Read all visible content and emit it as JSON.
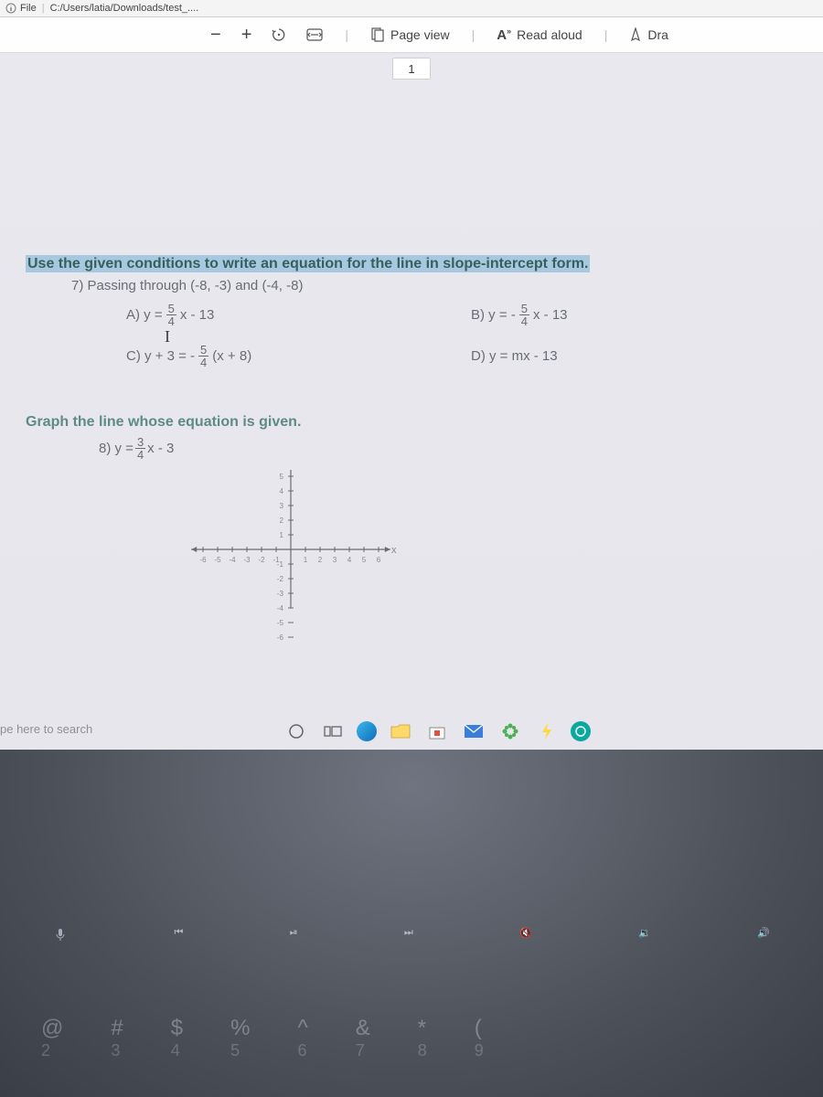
{
  "topbar": {
    "file_label": "File",
    "path_fragment": "C:/Users/latia/Downloads/test_...."
  },
  "toolbar": {
    "minus": "−",
    "plus": "+",
    "page_view_label": "Page view",
    "read_aloud_label": "Read aloud",
    "draw_label": "Dra"
  },
  "page_number": "1",
  "q7": {
    "prompt": "Use the given conditions to write an equation for the line in slope-intercept form.",
    "sub": "7) Passing through (-8, -3) and (-4, -8)",
    "A_label": "A) y = ",
    "A_num": "5",
    "A_den": "4",
    "A_tail": "x - 13",
    "B_label": "B) y = - ",
    "B_num": "5",
    "B_den": "4",
    "B_tail": "x - 13",
    "C_label": "C) y + 3 = - ",
    "C_num": "5",
    "C_den": "4",
    "C_tail": "(x + 8)",
    "D_label": "D) y = mx - 13",
    "hand_I": "I"
  },
  "q8": {
    "title": "Graph the line whose equation is given.",
    "eq_label": "8) y = ",
    "eq_num": "3",
    "eq_den": "4",
    "eq_tail": "x - 3",
    "axis": {
      "range": 6,
      "ticks": [
        "-6",
        "-5",
        "-4",
        "-3",
        "-2",
        "-1",
        "1",
        "2",
        "3",
        "4",
        "5",
        "6"
      ],
      "ylabel": "y",
      "xlabel": "x",
      "grid_color": "#d4d4da",
      "axis_color": "#6a6c75",
      "tick_color": "#888a92"
    }
  },
  "search_hint": "pe here to search",
  "colors": {
    "link_teal": "#5e8a8a",
    "body_gray": "#6a6c75",
    "highlight_bg": "#a8c8e0"
  },
  "keyboard_keys": [
    "@",
    "#",
    "$",
    "%",
    "",
    "&",
    "",
    ""
  ]
}
